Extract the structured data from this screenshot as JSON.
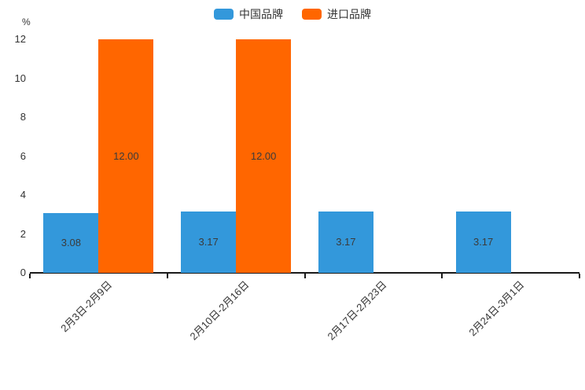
{
  "chart_data": {
    "type": "bar",
    "ylabel": "%",
    "ylim": [
      0,
      12
    ],
    "yticks": [
      0,
      2,
      4,
      6,
      8,
      10,
      12
    ],
    "grid": false,
    "legend_position": "top-center",
    "categories": [
      "2月3日-2月9日",
      "2月10日-2月16日",
      "2月17日-2月23日",
      "2月24日-3月1日"
    ],
    "series": [
      {
        "name": "中国品牌",
        "color": "#3398db",
        "values": [
          3.08,
          3.17,
          3.17,
          3.17
        ],
        "labels": [
          "3.08",
          "3.17",
          "3.17",
          "3.17"
        ]
      },
      {
        "name": "进口品牌",
        "color": "#ff6600",
        "values": [
          12.0,
          12.0,
          null,
          null
        ],
        "labels": [
          "12.00",
          "12.00",
          "",
          ""
        ]
      }
    ],
    "colors": {
      "axis": "#1a1a1a",
      "text": "#333333",
      "bar_label": "#3b3b3b",
      "background": "#ffffff"
    }
  }
}
